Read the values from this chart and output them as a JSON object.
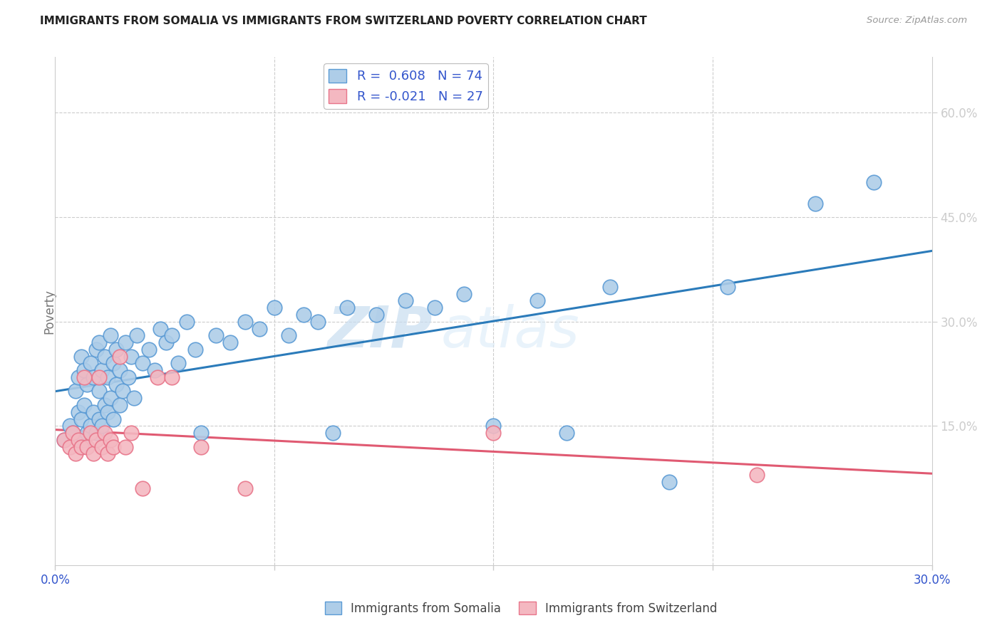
{
  "title": "IMMIGRANTS FROM SOMALIA VS IMMIGRANTS FROM SWITZERLAND POVERTY CORRELATION CHART",
  "source": "Source: ZipAtlas.com",
  "ylabel": "Poverty",
  "right_yticks": [
    "60.0%",
    "45.0%",
    "30.0%",
    "15.0%"
  ],
  "right_ytick_vals": [
    0.6,
    0.45,
    0.3,
    0.15
  ],
  "xlim": [
    0.0,
    0.3
  ],
  "ylim": [
    -0.05,
    0.68
  ],
  "somalia_color": "#aecde8",
  "somalia_edge_color": "#5b9bd5",
  "switzerland_color": "#f4b8c1",
  "switzerland_edge_color": "#e8758a",
  "trend_somalia_color": "#2b7bba",
  "trend_switzerland_color": "#e05a72",
  "legend_R_somalia": "R =  0.608",
  "legend_N_somalia": "N = 74",
  "legend_R_switzerland": "R = -0.021",
  "legend_N_switzerland": "N = 27",
  "watermark_zip": "ZIP",
  "watermark_atlas": "atlas",
  "grid_color": "#cccccc",
  "somalia_x": [
    0.003,
    0.005,
    0.006,
    0.007,
    0.008,
    0.008,
    0.009,
    0.009,
    0.01,
    0.01,
    0.01,
    0.011,
    0.011,
    0.012,
    0.012,
    0.013,
    0.013,
    0.014,
    0.014,
    0.015,
    0.015,
    0.015,
    0.016,
    0.016,
    0.017,
    0.017,
    0.018,
    0.018,
    0.019,
    0.019,
    0.02,
    0.02,
    0.021,
    0.021,
    0.022,
    0.022,
    0.023,
    0.024,
    0.025,
    0.026,
    0.027,
    0.028,
    0.03,
    0.032,
    0.034,
    0.036,
    0.038,
    0.04,
    0.042,
    0.045,
    0.048,
    0.05,
    0.055,
    0.06,
    0.065,
    0.07,
    0.075,
    0.08,
    0.085,
    0.09,
    0.095,
    0.1,
    0.11,
    0.12,
    0.13,
    0.14,
    0.15,
    0.165,
    0.175,
    0.19,
    0.21,
    0.23,
    0.26,
    0.28
  ],
  "somalia_y": [
    0.13,
    0.15,
    0.14,
    0.2,
    0.17,
    0.22,
    0.16,
    0.25,
    0.13,
    0.18,
    0.23,
    0.14,
    0.21,
    0.15,
    0.24,
    0.17,
    0.22,
    0.14,
    0.26,
    0.16,
    0.2,
    0.27,
    0.15,
    0.23,
    0.18,
    0.25,
    0.17,
    0.22,
    0.19,
    0.28,
    0.16,
    0.24,
    0.21,
    0.26,
    0.18,
    0.23,
    0.2,
    0.27,
    0.22,
    0.25,
    0.19,
    0.28,
    0.24,
    0.26,
    0.23,
    0.29,
    0.27,
    0.28,
    0.24,
    0.3,
    0.26,
    0.14,
    0.28,
    0.27,
    0.3,
    0.29,
    0.32,
    0.28,
    0.31,
    0.3,
    0.14,
    0.32,
    0.31,
    0.33,
    0.32,
    0.34,
    0.15,
    0.33,
    0.14,
    0.35,
    0.07,
    0.35,
    0.47,
    0.5
  ],
  "switzerland_x": [
    0.003,
    0.005,
    0.006,
    0.007,
    0.008,
    0.009,
    0.01,
    0.011,
    0.012,
    0.013,
    0.014,
    0.015,
    0.016,
    0.017,
    0.018,
    0.019,
    0.02,
    0.022,
    0.024,
    0.026,
    0.03,
    0.035,
    0.04,
    0.05,
    0.065,
    0.15,
    0.24
  ],
  "switzerland_y": [
    0.13,
    0.12,
    0.14,
    0.11,
    0.13,
    0.12,
    0.22,
    0.12,
    0.14,
    0.11,
    0.13,
    0.22,
    0.12,
    0.14,
    0.11,
    0.13,
    0.12,
    0.25,
    0.12,
    0.14,
    0.06,
    0.22,
    0.22,
    0.12,
    0.06,
    0.14,
    0.08
  ],
  "xtick_positions": [
    0.0,
    0.075,
    0.15,
    0.225,
    0.3
  ],
  "xtick_labels_show": [
    "0.0%",
    "",
    "",
    "",
    "30.0%"
  ]
}
